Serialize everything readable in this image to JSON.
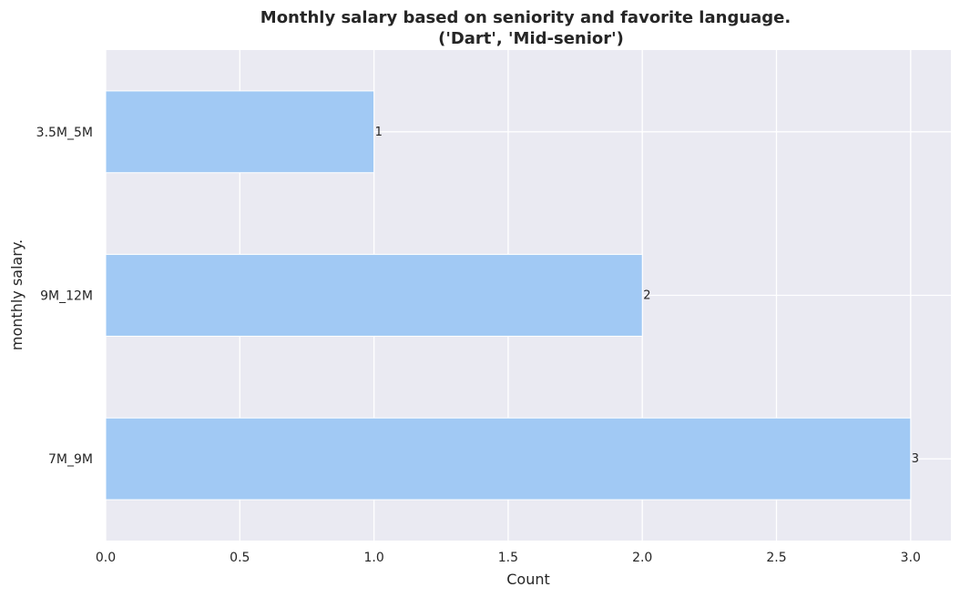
{
  "chart_data": {
    "type": "bar",
    "orientation": "horizontal",
    "title": "Monthly salary based on seniority and favorite language.",
    "subtitle": "('Dart', 'Mid-senior')",
    "xlabel": "Count",
    "ylabel": "monthly salary.",
    "categories": [
      "3.5M_5M",
      "9M_12M",
      "7M_9M"
    ],
    "values": [
      1,
      2,
      3
    ],
    "data_labels": [
      "1",
      "2",
      "3"
    ],
    "xlim": [
      0,
      3.15
    ],
    "xticks": [
      0.0,
      0.5,
      1.0,
      1.5,
      2.0,
      2.5,
      3.0
    ],
    "xtick_labels": [
      "0.0",
      "0.5",
      "1.0",
      "1.5",
      "2.0",
      "2.5",
      "3.0"
    ],
    "grid": true,
    "colors": {
      "bar": "#a1c9f4",
      "plot_background": "#eaeaf2",
      "grid": "#ffffff",
      "text": "#262626"
    }
  }
}
